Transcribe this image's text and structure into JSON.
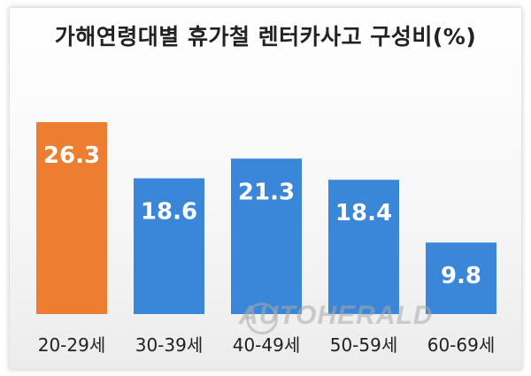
{
  "chart_data": {
    "type": "bar",
    "title": "가해연령대별 휴가철 렌터카사고 구성비(%)",
    "categories": [
      "20-29세",
      "30-39세",
      "40-49세",
      "50-59세",
      "60-69세"
    ],
    "values": [
      26.3,
      18.6,
      21.3,
      18.4,
      9.8
    ],
    "value_labels": [
      "26.3",
      "18.6",
      "21.3",
      "18.4",
      "9.8"
    ],
    "colors": [
      "#ED7D31",
      "#3A86D8",
      "#3A86D8",
      "#3A86D8",
      "#3A86D8"
    ],
    "ylim": [
      0,
      30
    ],
    "xlabel": "",
    "ylabel": "",
    "grid": false,
    "legend": "none"
  },
  "watermark": "AUTOHERALD"
}
